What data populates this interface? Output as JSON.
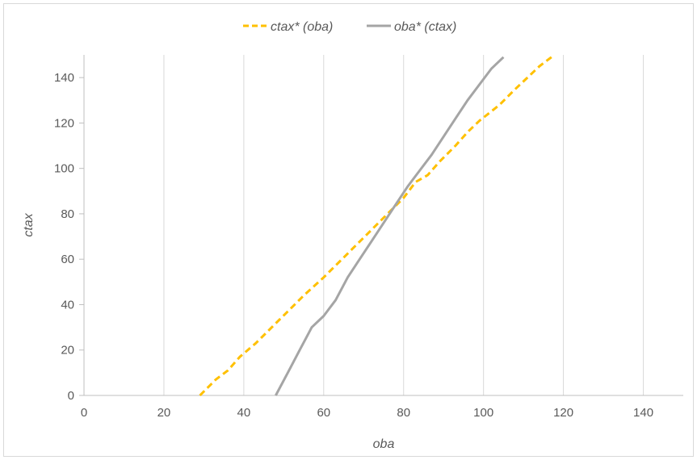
{
  "chart_data": {
    "type": "line",
    "xlabel": "oba",
    "ylabel": "ctax",
    "xlim": [
      0,
      150
    ],
    "ylim": [
      0,
      150
    ],
    "x_ticks": [
      0,
      20,
      40,
      60,
      80,
      100,
      120,
      140
    ],
    "y_ticks": [
      0,
      20,
      40,
      60,
      80,
      100,
      120,
      140
    ],
    "grid": "vertical",
    "legend_position": "top",
    "series": [
      {
        "name": "ctax* (oba)",
        "color": "#FFC000",
        "dash": "dashed",
        "points": [
          [
            29,
            0
          ],
          [
            33,
            7
          ],
          [
            36,
            11
          ],
          [
            39,
            17
          ],
          [
            43,
            23
          ],
          [
            47,
            30
          ],
          [
            51,
            37
          ],
          [
            55,
            44
          ],
          [
            60,
            52
          ],
          [
            64,
            59
          ],
          [
            68,
            66
          ],
          [
            72,
            73
          ],
          [
            76,
            80
          ],
          [
            80,
            87
          ],
          [
            83,
            94
          ],
          [
            86,
            97
          ],
          [
            89,
            103
          ],
          [
            93,
            110
          ],
          [
            96,
            116
          ],
          [
            99,
            121
          ],
          [
            104,
            128
          ],
          [
            108,
            135
          ],
          [
            111,
            140
          ],
          [
            114,
            145
          ],
          [
            117,
            149
          ]
        ]
      },
      {
        "name": "oba* (ctax)",
        "color": "#A5A5A5",
        "dash": "solid",
        "points": [
          [
            48,
            0
          ],
          [
            51,
            10
          ],
          [
            54,
            20
          ],
          [
            57,
            30
          ],
          [
            60,
            35
          ],
          [
            63,
            42
          ],
          [
            66,
            52
          ],
          [
            69,
            60
          ],
          [
            72,
            68
          ],
          [
            75,
            76
          ],
          [
            78,
            84
          ],
          [
            81,
            92
          ],
          [
            84,
            99
          ],
          [
            87,
            106
          ],
          [
            90,
            114
          ],
          [
            93,
            122
          ],
          [
            96,
            130
          ],
          [
            99,
            137
          ],
          [
            102,
            144
          ],
          [
            105,
            149
          ]
        ]
      }
    ]
  }
}
